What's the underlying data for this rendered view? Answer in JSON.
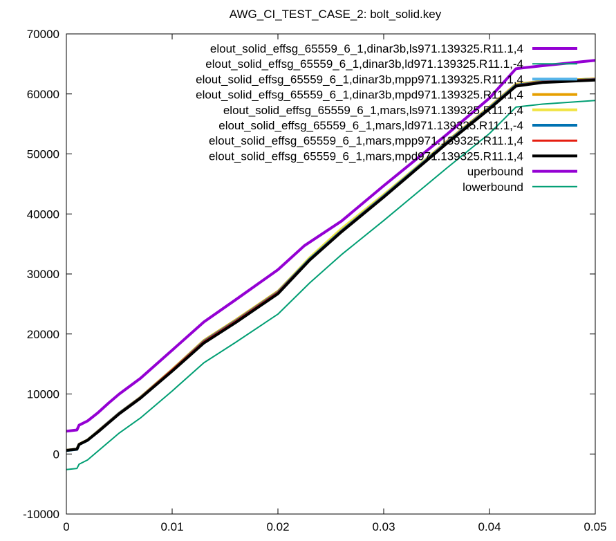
{
  "chart_data": {
    "type": "line",
    "title": "AWG_CI_TEST_CASE_2: bolt_solid.key",
    "xlabel": "",
    "ylabel": "",
    "xlim": [
      0,
      0.05
    ],
    "ylim": [
      -10000,
      70000
    ],
    "xticks": [
      "0",
      "0.01",
      "0.02",
      "0.03",
      "0.04",
      "0.05"
    ],
    "yticks": [
      "-10000",
      "0",
      "10000",
      "20000",
      "30000",
      "40000",
      "50000",
      "60000",
      "70000"
    ],
    "xtick_values": [
      0,
      0.01,
      0.02,
      0.03,
      0.04,
      0.05
    ],
    "ytick_values": [
      -10000,
      0,
      10000,
      20000,
      30000,
      40000,
      50000,
      60000,
      70000
    ],
    "grid": false,
    "legend_position": "top-right",
    "series": [
      {
        "name": "elout_solid_effsg_65559_6_1,dinar3b,ls971.139325.R11.1,4",
        "color": "#9400d3",
        "x": [
          0,
          0.001,
          0.0012,
          0.002,
          0.003,
          0.004,
          0.005,
          0.007,
          0.01,
          0.013,
          0.016,
          0.02,
          0.023,
          0.026,
          0.03,
          0.033,
          0.036,
          0.04,
          0.0425,
          0.045,
          0.05
        ],
        "y": [
          600,
          800,
          1600,
          2300,
          3800,
          5300,
          6800,
          9400,
          14000,
          18800,
          22200,
          27000,
          32500,
          37200,
          43000,
          47500,
          52000,
          57700,
          61500,
          62000,
          62400
        ]
      },
      {
        "name": "elout_solid_effsg_65559_6_1,dinar3b,ld971.139325.R11.1,-4",
        "color": "#009e73",
        "x": [
          0,
          0.001,
          0.0012,
          0.002,
          0.003,
          0.004,
          0.005,
          0.007,
          0.01,
          0.013,
          0.016,
          0.02,
          0.023,
          0.026,
          0.03,
          0.033,
          0.036,
          0.04,
          0.0425,
          0.045,
          0.05
        ],
        "y": [
          550,
          750,
          1500,
          2200,
          3700,
          5200,
          6700,
          9300,
          13800,
          18600,
          22000,
          26800,
          32300,
          37000,
          42800,
          47300,
          51800,
          57500,
          61300,
          61900,
          62300
        ]
      },
      {
        "name": "elout_solid_effsg_65559_6_1,dinar3b,mpp971.139325.R11.1,4",
        "color": "#56b4e9",
        "x": [
          0,
          0.001,
          0.0012,
          0.002,
          0.003,
          0.004,
          0.005,
          0.007,
          0.01,
          0.013,
          0.016,
          0.02,
          0.023,
          0.026,
          0.03,
          0.033,
          0.036,
          0.04,
          0.0425,
          0.045,
          0.05
        ],
        "y": [
          600,
          800,
          1600,
          2300,
          3800,
          5300,
          6800,
          9400,
          13900,
          18700,
          22100,
          26900,
          32400,
          37100,
          42900,
          47400,
          51900,
          57600,
          61500,
          62100,
          62500
        ]
      },
      {
        "name": "elout_solid_effsg_65559_6_1,dinar3b,mpd971.139325.R11.1,4",
        "color": "#e69f00",
        "x": [
          0,
          0.001,
          0.0012,
          0.002,
          0.003,
          0.004,
          0.005,
          0.007,
          0.01,
          0.013,
          0.016,
          0.02,
          0.023,
          0.026,
          0.03,
          0.033,
          0.036,
          0.04,
          0.0425,
          0.045,
          0.05
        ],
        "y": [
          620,
          820,
          1620,
          2320,
          3820,
          5320,
          6820,
          9450,
          14050,
          18900,
          22300,
          27100,
          32600,
          37300,
          43100,
          47600,
          52100,
          57800,
          61600,
          62100,
          62500
        ]
      },
      {
        "name": "elout_solid_effsg_65559_6_1,mars,ls971.139325.R11.1,4",
        "color": "#f0e442",
        "x": [
          0,
          0.001,
          0.0012,
          0.002,
          0.003,
          0.004,
          0.005,
          0.007,
          0.01,
          0.013,
          0.016,
          0.02,
          0.023,
          0.026,
          0.03,
          0.033,
          0.036,
          0.04,
          0.0425,
          0.045,
          0.05
        ],
        "y": [
          600,
          800,
          1600,
          2300,
          3800,
          5300,
          6800,
          9400,
          14000,
          18800,
          22200,
          27000,
          32700,
          37500,
          43200,
          47600,
          52000,
          57700,
          61500,
          62000,
          62400
        ]
      },
      {
        "name": "elout_solid_effsg_65559_6_1,mars,ld971.139325.R11.1,-4",
        "color": "#0072b2",
        "x": [
          0,
          0.001,
          0.0012,
          0.002,
          0.003,
          0.004,
          0.005,
          0.007,
          0.01,
          0.013,
          0.016,
          0.02,
          0.023,
          0.026,
          0.03,
          0.033,
          0.036,
          0.04,
          0.0425,
          0.045,
          0.05
        ],
        "y": [
          580,
          780,
          1580,
          2280,
          3780,
          5280,
          6780,
          9380,
          13950,
          18750,
          22150,
          26950,
          32450,
          37150,
          42950,
          47450,
          51950,
          57650,
          61450,
          62000,
          62400
        ]
      },
      {
        "name": "elout_solid_effsg_65559_6_1,mars,mpp971.139325.R11.1,4",
        "color": "#e51e10",
        "x": [
          0,
          0.001,
          0.0012,
          0.002,
          0.003,
          0.004,
          0.005,
          0.007,
          0.01,
          0.013,
          0.016,
          0.02,
          0.023,
          0.026,
          0.03,
          0.033,
          0.036,
          0.04,
          0.0425,
          0.045,
          0.05
        ],
        "y": [
          600,
          800,
          1600,
          2300,
          3800,
          5300,
          6800,
          9400,
          14000,
          18700,
          22100,
          26900,
          32400,
          37100,
          42900,
          47400,
          51900,
          57600,
          61400,
          62000,
          62400
        ]
      },
      {
        "name": "elout_solid_effsg_65559_6_1,mars,mpd971.139325.R11.1,4",
        "color": "#000000",
        "x": [
          0,
          0.001,
          0.0012,
          0.002,
          0.003,
          0.004,
          0.005,
          0.007,
          0.01,
          0.013,
          0.016,
          0.02,
          0.023,
          0.026,
          0.03,
          0.033,
          0.036,
          0.04,
          0.0425,
          0.045,
          0.05
        ],
        "y": [
          600,
          800,
          1600,
          2300,
          3700,
          5200,
          6700,
          9300,
          13800,
          18500,
          21900,
          26700,
          32300,
          37000,
          42800,
          47300,
          51800,
          57500,
          61300,
          61900,
          62300
        ]
      },
      {
        "name": "uperbound",
        "color": "#9400d3",
        "x": [
          0,
          0.001,
          0.0012,
          0.002,
          0.003,
          0.004,
          0.005,
          0.007,
          0.01,
          0.013,
          0.016,
          0.02,
          0.0225,
          0.026,
          0.03,
          0.033,
          0.036,
          0.04,
          0.0425,
          0.045,
          0.05
        ],
        "y": [
          3800,
          4000,
          4800,
          5500,
          6900,
          8500,
          10000,
          12600,
          17300,
          22000,
          25700,
          30700,
          34700,
          38800,
          44700,
          49000,
          53300,
          59300,
          64200,
          64700,
          65600
        ]
      },
      {
        "name": "lowerbound",
        "color": "#009e73",
        "x": [
          0,
          0.001,
          0.0012,
          0.002,
          0.003,
          0.004,
          0.005,
          0.007,
          0.01,
          0.013,
          0.016,
          0.02,
          0.023,
          0.026,
          0.03,
          0.033,
          0.036,
          0.04,
          0.0425,
          0.045,
          0.05
        ],
        "y": [
          -2600,
          -2400,
          -1700,
          -1000,
          500,
          2000,
          3500,
          6000,
          10500,
          15200,
          18600,
          23300,
          28500,
          33200,
          38900,
          43300,
          47700,
          53400,
          57800,
          58300,
          58900
        ]
      }
    ]
  }
}
